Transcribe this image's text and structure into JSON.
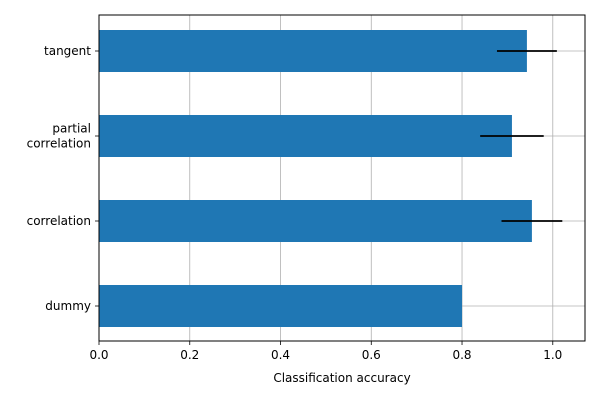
{
  "chart_data": {
    "type": "bar",
    "orientation": "horizontal",
    "title": "",
    "xlabel": "Classification accuracy",
    "ylabel": "",
    "xlim": [
      0.0,
      1.071
    ],
    "grid": true,
    "legend": null,
    "bar_color": "#1f77b4",
    "errorbar_color": "#000000",
    "xticks": [
      "0.0",
      "0.2",
      "0.4",
      "0.6",
      "0.8",
      "1.0"
    ],
    "categories": [
      "tangent",
      "partial correlation",
      "correlation",
      "dummy"
    ],
    "category_label_lines": [
      [
        "tangent"
      ],
      [
        "partial",
        "correlation"
      ],
      [
        "correlation"
      ],
      [
        "dummy"
      ]
    ],
    "values": [
      0.943,
      0.91,
      0.954,
      0.8
    ],
    "errors": [
      0.066,
      0.07,
      0.067,
      0.0
    ]
  }
}
